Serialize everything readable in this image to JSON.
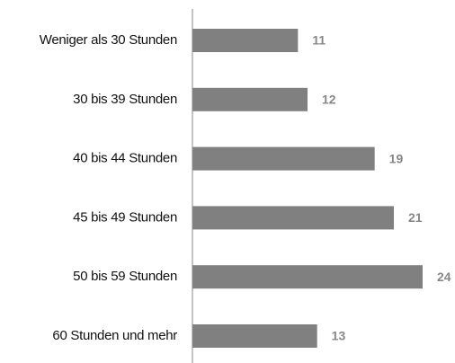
{
  "chart_data": {
    "type": "bar",
    "orientation": "horizontal",
    "categories": [
      "Weniger als 30 Stunden",
      "30 bis 39 Stunden",
      "40 bis 44 Stunden",
      "45 bis 49 Stunden",
      "50 bis 59 Stunden",
      "60 Stunden und mehr"
    ],
    "values": [
      11,
      12,
      19,
      21,
      24,
      13
    ],
    "color": "#808080"
  }
}
